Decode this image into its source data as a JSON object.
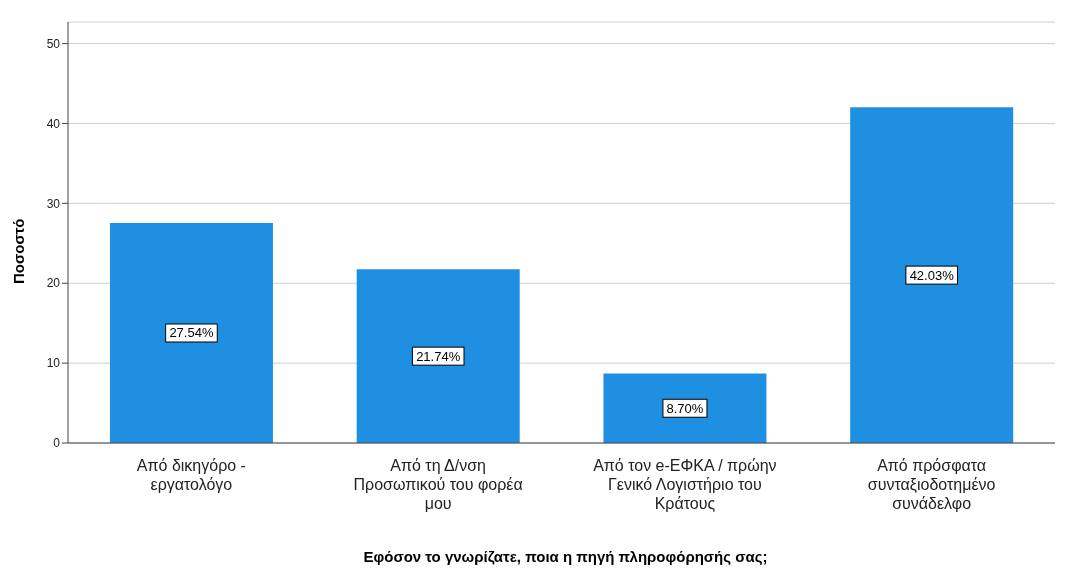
{
  "chart_data": {
    "type": "bar",
    "xlabel": "Εφόσον το γνωρίζατε, ποια η πηγή πληροφόρησής σας;",
    "ylabel": "Ποσοστό",
    "categories": [
      "Από δικηγόρο - εργατολόγο",
      "Από τη Δ/νση Προσωπικού του φορέα μου",
      "Από τον e-ΕΦΚΑ / πρώην Γενικό Λογιστήριο του Κράτους",
      "Από πρόσφατα συνταξιοδοτημένο συνάδελφο"
    ],
    "values": [
      27.54,
      21.74,
      8.7,
      42.03
    ],
    "value_labels": [
      "27.54%",
      "21.74%",
      "8.70%",
      "42.03%"
    ],
    "color": "#1e8fe1",
    "ylim": [
      0,
      52.7
    ],
    "yticks": [
      0,
      10,
      20,
      30,
      40,
      50
    ],
    "grid": "y"
  }
}
